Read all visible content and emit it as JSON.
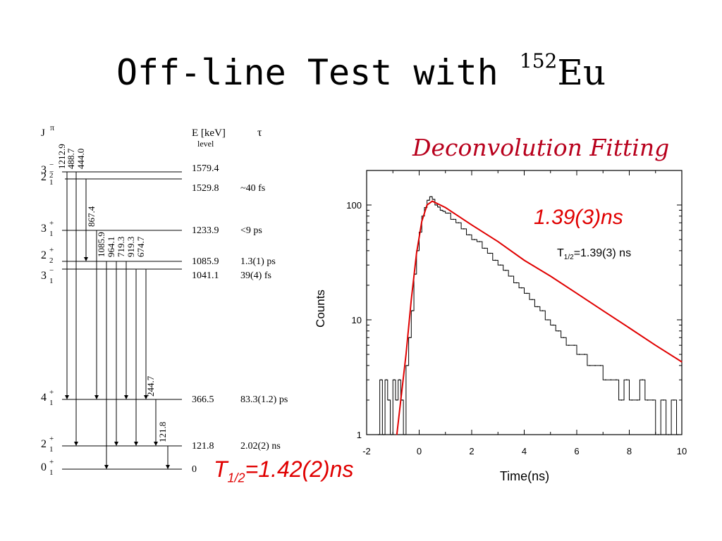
{
  "slide": {
    "title_prefix": "Off-line Test with ",
    "title_superscript": "152",
    "title_element": "Eu",
    "fitting_title": "Deconvolution Fitting",
    "fit_result_label": "1.39(3)ns",
    "halflife_prefix": "T",
    "halflife_sub": "1/2",
    "halflife_value": "=1.42(2)ns",
    "accent_color": "#e00000"
  },
  "level_scheme": {
    "header_jpi": "J",
    "header_jpi_sup": "π",
    "header_energy": "E [keV]",
    "header_energy_sub": "level",
    "header_tau": "τ",
    "levels": [
      {
        "j": "3",
        "sup": "−",
        "sub": "2",
        "energy": "1579.4",
        "tau": ""
      },
      {
        "j": "2",
        "sup": "−",
        "sub": "1",
        "energy": "1529.8",
        "tau": "~40 fs"
      },
      {
        "j": "3",
        "sup": "+",
        "sub": "1",
        "energy": "1233.9",
        "tau": "<9 ps"
      },
      {
        "j": "2",
        "sup": "+",
        "sub": "2",
        "energy": "1085.9",
        "tau": "1.3(1) ps"
      },
      {
        "j": "3",
        "sup": "−",
        "sub": "1",
        "energy": "1041.1",
        "tau": "39(4) fs"
      },
      {
        "j": "4",
        "sup": "+",
        "sub": "1",
        "energy": "366.5",
        "tau": "83.3(1.2) ps"
      },
      {
        "j": "2",
        "sup": "+",
        "sub": "1",
        "energy": "121.8",
        "tau": "2.02(2) ns"
      },
      {
        "j": "0",
        "sup": "+",
        "sub": "1",
        "energy": "0",
        "tau": ""
      }
    ],
    "transitions": [
      "1212.9",
      "488.7",
      "444.0",
      "867.4",
      "1085.9",
      "964.1",
      "719.3",
      "919.3",
      "674.7",
      "244.7",
      "121.8"
    ]
  },
  "chart_data": {
    "type": "line",
    "title": "",
    "xlabel": "Time(ns)",
    "ylabel": "Counts",
    "xlim": [
      -2,
      10
    ],
    "ylim": [
      1,
      200
    ],
    "y_scale": "log",
    "x_ticks": [
      "-2",
      "0",
      "2",
      "4",
      "6",
      "8",
      "10"
    ],
    "y_ticks": [
      "1",
      "10",
      "100"
    ],
    "annotation": "T1/2=1.39(3) ns",
    "annotation_prefix": "T",
    "annotation_sub": "1/2",
    "annotation_value": "=1.39(3) ns",
    "series": [
      {
        "name": "",
        "style": "histogram",
        "color": "#000000",
        "x": [
          -1.6,
          -1.5,
          -1.4,
          -1.3,
          -1.2,
          -1.1,
          -1.0,
          -0.9,
          -0.8,
          -0.7,
          -0.6,
          -0.5,
          -0.4,
          -0.3,
          -0.2,
          -0.1,
          0.0,
          0.1,
          0.2,
          0.3,
          0.4,
          0.5,
          0.6,
          0.7,
          0.8,
          0.9,
          1.0,
          1.2,
          1.4,
          1.6,
          1.8,
          2.0,
          2.2,
          2.4,
          2.6,
          2.8,
          3.0,
          3.2,
          3.4,
          3.6,
          3.8,
          4.0,
          4.2,
          4.4,
          4.6,
          4.8,
          5.0,
          5.2,
          5.4,
          5.6,
          5.8,
          6.0,
          6.2,
          6.4,
          6.6,
          6.8,
          7.0,
          7.2,
          7.4,
          7.6,
          7.8,
          8.0,
          8.2,
          8.4,
          8.6,
          8.8,
          9.0,
          9.2,
          9.4,
          9.6,
          9.8
        ],
        "y": [
          1,
          3,
          1,
          3,
          2,
          1,
          3,
          2,
          3,
          2,
          1,
          4,
          7,
          12,
          25,
          40,
          58,
          80,
          95,
          110,
          118,
          112,
          100,
          96,
          90,
          88,
          85,
          75,
          70,
          62,
          55,
          50,
          48,
          42,
          38,
          33,
          30,
          27,
          24,
          21,
          19,
          17,
          15,
          13,
          12,
          10,
          9,
          8,
          7,
          6,
          6,
          5,
          5,
          4,
          4,
          4,
          3,
          3,
          3,
          2,
          3,
          2,
          2,
          3,
          2,
          2,
          1,
          2,
          1,
          2,
          1
        ]
      },
      {
        "name": "",
        "style": "fit",
        "color": "#e00000",
        "x": [
          -0.85,
          -0.7,
          -0.5,
          -0.3,
          -0.1,
          0.1,
          0.3,
          0.5,
          1.0,
          2.0,
          3.0,
          4.0,
          5.0,
          6.0,
          7.0,
          8.0,
          9.0,
          10.0
        ],
        "y": [
          1,
          2,
          5,
          15,
          38,
          72,
          100,
          108,
          95,
          67,
          48,
          33,
          24,
          17,
          12,
          8.5,
          6,
          4.3
        ]
      }
    ]
  }
}
